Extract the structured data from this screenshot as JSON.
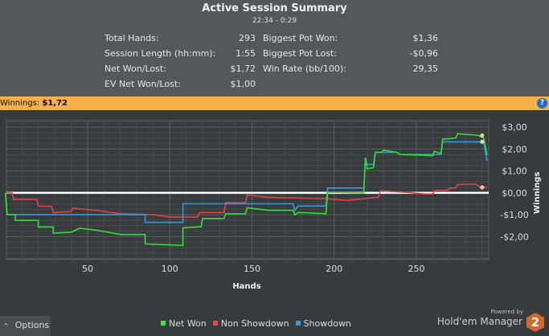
{
  "summary": {
    "title": "Active Session Summary",
    "time_range": "22:34 - 0:29",
    "left": [
      {
        "label": "Total Hands:",
        "value": "293"
      },
      {
        "label": "Session Length (hh:mm):",
        "value": "1:55"
      },
      {
        "label": "Net Won/Lost:",
        "value": "$1,72"
      },
      {
        "label": "EV Net Won/Lost:",
        "value": "$1,00"
      }
    ],
    "right": [
      {
        "label": "Biggest Pot Won:",
        "value": "$1,36"
      },
      {
        "label": "Biggest Pot Lost:",
        "value": "-$0,96"
      },
      {
        "label": "Win Rate (bb/100):",
        "value": "29,35"
      }
    ]
  },
  "winnings_bar": {
    "label": "Winnings:",
    "value": "$1,72",
    "help_icon": "?"
  },
  "chart_data": {
    "type": "line",
    "xlabel": "Hands",
    "ylabel": "Winnings",
    "xlim": [
      0,
      295
    ],
    "ylim": [
      -3.05,
      3.3
    ],
    "x_ticks": [
      50,
      100,
      150,
      200,
      250
    ],
    "y_ticks": [
      {
        "v": 3,
        "label": "$3,00"
      },
      {
        "v": 2,
        "label": "$2,00"
      },
      {
        "v": 1,
        "label": "$1,00"
      },
      {
        "v": 0,
        "label": "$0,00"
      },
      {
        "v": -1,
        "label": "-$1,00"
      },
      {
        "v": -2,
        "label": "-$2,00"
      }
    ],
    "grid": true,
    "legend": "bottom",
    "series": [
      {
        "name": "Net Won",
        "color": "#33dd33",
        "points": [
          [
            0,
            0
          ],
          [
            1,
            -1.0
          ],
          [
            6,
            -1.0
          ],
          [
            6,
            -1.26
          ],
          [
            20,
            -1.26
          ],
          [
            20,
            -1.56
          ],
          [
            29,
            -1.56
          ],
          [
            29,
            -1.84
          ],
          [
            40,
            -1.8
          ],
          [
            45,
            -1.62
          ],
          [
            55,
            -1.7
          ],
          [
            70,
            -1.9
          ],
          [
            85,
            -1.9
          ],
          [
            85,
            -2.33
          ],
          [
            100,
            -2.38
          ],
          [
            108,
            -2.4
          ],
          [
            108,
            -1.6
          ],
          [
            119,
            -1.55
          ],
          [
            120,
            -1.17
          ],
          [
            133,
            -1.17
          ],
          [
            134,
            -0.96
          ],
          [
            146,
            -0.96
          ],
          [
            147,
            -0.68
          ],
          [
            160,
            -0.8
          ],
          [
            175,
            -0.8
          ],
          [
            176,
            -1.0
          ],
          [
            178,
            -0.9
          ],
          [
            195,
            -0.95
          ],
          [
            196,
            0.03
          ],
          [
            218,
            0.0
          ],
          [
            219,
            1.6
          ],
          [
            220,
            1.1
          ],
          [
            224,
            1.15
          ],
          [
            225,
            1.85
          ],
          [
            229,
            1.85
          ],
          [
            230,
            1.95
          ],
          [
            238,
            1.85
          ],
          [
            240,
            1.75
          ],
          [
            260,
            1.7
          ],
          [
            261,
            1.9
          ],
          [
            265,
            1.8
          ],
          [
            266,
            2.45
          ],
          [
            274,
            2.5
          ],
          [
            275,
            2.7
          ],
          [
            288,
            2.62
          ],
          [
            291,
            2.5
          ],
          [
            293,
            1.72
          ]
        ]
      },
      {
        "name": "Non Showdown",
        "color": "#dd4444",
        "points": [
          [
            0,
            0
          ],
          [
            4,
            0
          ],
          [
            5,
            -0.3
          ],
          [
            19,
            -0.3
          ],
          [
            20,
            -0.6
          ],
          [
            28,
            -0.62
          ],
          [
            29,
            -0.9
          ],
          [
            40,
            -0.85
          ],
          [
            41,
            -0.7
          ],
          [
            55,
            -0.8
          ],
          [
            70,
            -0.95
          ],
          [
            90,
            -1.0
          ],
          [
            100,
            -1.1
          ],
          [
            117,
            -1.1
          ],
          [
            118,
            -0.9
          ],
          [
            133,
            -0.9
          ],
          [
            134,
            -0.44
          ],
          [
            146,
            -0.45
          ],
          [
            147,
            -0.1
          ],
          [
            160,
            -0.2
          ],
          [
            196,
            -0.27
          ],
          [
            208,
            -0.35
          ],
          [
            220,
            -0.25
          ],
          [
            227,
            -0.2
          ],
          [
            228,
            0.1
          ],
          [
            245,
            0.02
          ],
          [
            255,
            -0.05
          ],
          [
            260,
            -0.05
          ],
          [
            261,
            0.1
          ],
          [
            269,
            0.12
          ],
          [
            270,
            0.2
          ],
          [
            274,
            0.22
          ],
          [
            275,
            0.38
          ],
          [
            286,
            0.4
          ],
          [
            289,
            0.25
          ],
          [
            293,
            0.25
          ]
        ]
      },
      {
        "name": "Showdown",
        "color": "#3399dd",
        "points": [
          [
            0,
            0
          ],
          [
            1,
            -1.0
          ],
          [
            85,
            -1.0
          ],
          [
            85,
            -1.35
          ],
          [
            108,
            -1.35
          ],
          [
            108,
            -0.5
          ],
          [
            175,
            -0.5
          ],
          [
            176,
            -0.8
          ],
          [
            178,
            -0.6
          ],
          [
            195,
            -0.6
          ],
          [
            196,
            0.22
          ],
          [
            218,
            0.22
          ],
          [
            219,
            1.6
          ],
          [
            220,
            1.3
          ],
          [
            224,
            1.3
          ],
          [
            225,
            1.85
          ],
          [
            238,
            1.85
          ],
          [
            240,
            1.75
          ],
          [
            265,
            1.75
          ],
          [
            266,
            2.33
          ],
          [
            291,
            2.33
          ],
          [
            293,
            1.45
          ]
        ]
      }
    ]
  },
  "footer": {
    "options_label": "Options",
    "options_icon": "chevron-up",
    "powered_by": "Powered by",
    "brand": "Hold'em Manager",
    "logo_text": "2"
  }
}
